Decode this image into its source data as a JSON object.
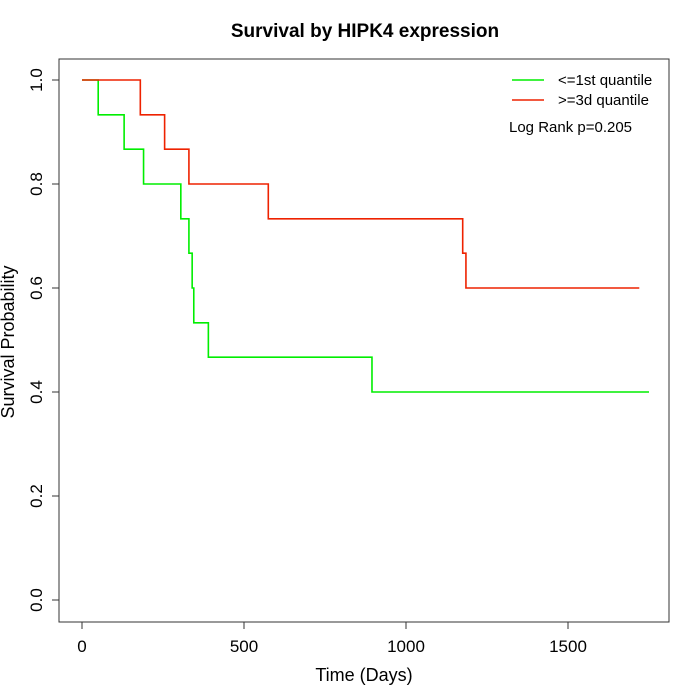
{
  "chart_data": {
    "type": "line",
    "title": "Survival by HIPK4 expression",
    "xlabel": "Time (Days)",
    "ylabel": "Survival Probability",
    "xlim": [
      0,
      1800
    ],
    "ylim": [
      0,
      1.0
    ],
    "x_ticks": [
      "0",
      "500",
      "1000",
      "1500"
    ],
    "x_tick_values": [
      0,
      500,
      1000,
      1500
    ],
    "y_ticks": [
      "0.0",
      "0.2",
      "0.4",
      "0.6",
      "0.8",
      "1.0"
    ],
    "y_tick_values": [
      0.0,
      0.2,
      0.4,
      0.6,
      0.8,
      1.0
    ],
    "legend_position": "top-right",
    "annotation": "Log Rank p=0.205",
    "series": [
      {
        "name": "<=1st quantile",
        "color": "#00ee00",
        "step": true,
        "x": [
          0,
          50,
          130,
          190,
          305,
          330,
          340,
          345,
          390,
          895,
          1750
        ],
        "y": [
          1.0,
          0.933,
          0.867,
          0.8,
          0.733,
          0.667,
          0.6,
          0.533,
          0.467,
          0.4,
          0.4
        ]
      },
      {
        "name": ">=3d quantile",
        "color": "#ee2200",
        "step": true,
        "x": [
          0,
          180,
          255,
          330,
          575,
          1175,
          1185,
          1720
        ],
        "y": [
          1.0,
          0.933,
          0.867,
          0.8,
          0.733,
          0.667,
          0.6,
          0.6
        ]
      }
    ]
  }
}
